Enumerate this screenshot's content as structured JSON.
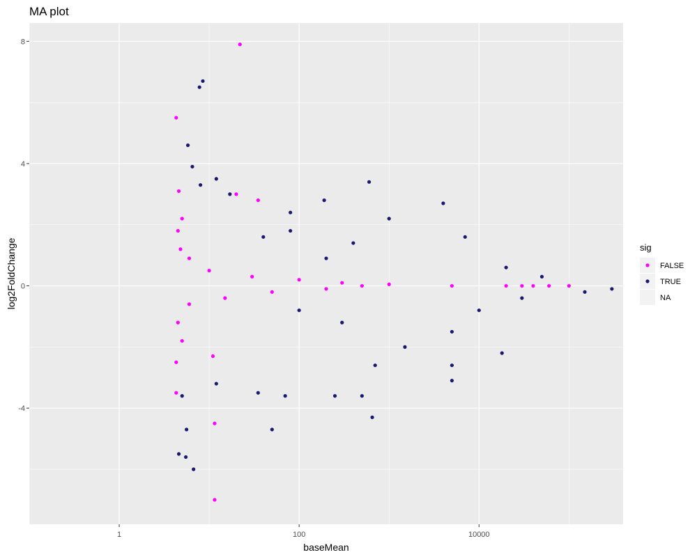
{
  "chart_data": {
    "type": "scatter",
    "title": "MA plot",
    "xlabel": "baseMean",
    "ylabel": "log2FoldChange",
    "x_scale": "log10",
    "xlim": [
      0.1,
      400000
    ],
    "ylim": [
      -7.8,
      8.6
    ],
    "x_ticks": [
      {
        "value": 1,
        "label": "1"
      },
      {
        "value": 100,
        "label": "100"
      },
      {
        "value": 10000,
        "label": "10000"
      }
    ],
    "y_ticks": [
      {
        "value": -4,
        "label": "-4"
      },
      {
        "value": 0,
        "label": "0"
      },
      {
        "value": 4,
        "label": "4"
      },
      {
        "value": 8,
        "label": "8"
      }
    ],
    "grid": true,
    "legend": {
      "title": "sig",
      "position": "right",
      "entries": [
        {
          "label": "FALSE",
          "color": "#ff00ff"
        },
        {
          "label": "TRUE",
          "color": "#191970"
        },
        {
          "label": "NA",
          "color": ""
        }
      ]
    },
    "colors": {
      "panel_bg": "#ebebeb",
      "grid": "#ffffff"
    },
    "series": [
      {
        "name": "FALSE",
        "color": "#ff00ff",
        "points": [
          [
            22,
            7.9
          ],
          [
            4.3,
            5.5
          ],
          [
            4.6,
            3.1
          ],
          [
            20,
            3.0
          ],
          [
            35,
            2.8
          ],
          [
            5,
            2.2
          ],
          [
            4.5,
            1.8
          ],
          [
            4.8,
            1.2
          ],
          [
            6,
            0.9
          ],
          [
            10,
            0.5
          ],
          [
            30,
            0.3
          ],
          [
            100,
            0.2
          ],
          [
            300,
            0.1
          ],
          [
            1000,
            0.05
          ],
          [
            5000,
            0.0
          ],
          [
            20000,
            0.0
          ],
          [
            30000,
            0.0
          ],
          [
            40000,
            0.0
          ],
          [
            60000,
            0.0
          ],
          [
            100000,
            0.0
          ],
          [
            500,
            0.0
          ],
          [
            200,
            -0.1
          ],
          [
            50,
            -0.2
          ],
          [
            15,
            -0.4
          ],
          [
            6,
            -0.6
          ],
          [
            4.5,
            -1.2
          ],
          [
            5,
            -1.8
          ],
          [
            4.3,
            -2.5
          ],
          [
            4.3,
            -3.5
          ],
          [
            11,
            -2.3
          ],
          [
            11.5,
            -4.5
          ],
          [
            11.5,
            -7.0
          ]
        ]
      },
      {
        "name": "TRUE",
        "color": "#191970",
        "points": [
          [
            8.5,
            6.7
          ],
          [
            7.8,
            6.5
          ],
          [
            5.8,
            4.6
          ],
          [
            6.5,
            3.9
          ],
          [
            12,
            3.5
          ],
          [
            8,
            3.3
          ],
          [
            17,
            3.0
          ],
          [
            190,
            2.8
          ],
          [
            600,
            3.4
          ],
          [
            80,
            2.4
          ],
          [
            4000,
            2.7
          ],
          [
            1000,
            2.2
          ],
          [
            7000,
            1.6
          ],
          [
            20000,
            0.6
          ],
          [
            50000,
            0.3
          ],
          [
            300000,
            -0.1
          ],
          [
            150000,
            -0.2
          ],
          [
            30000,
            -0.4
          ],
          [
            10000,
            -0.8
          ],
          [
            5000,
            -1.5
          ],
          [
            1500,
            -2.0
          ],
          [
            700,
            -2.6
          ],
          [
            5000,
            -2.6
          ],
          [
            18000,
            -2.2
          ],
          [
            5000,
            -3.1
          ],
          [
            500,
            -3.6
          ],
          [
            250,
            -3.6
          ],
          [
            70,
            -3.6
          ],
          [
            35,
            -3.5
          ],
          [
            12,
            -3.2
          ],
          [
            5,
            -3.6
          ],
          [
            5.6,
            -4.7
          ],
          [
            50,
            -4.7
          ],
          [
            650,
            -4.3
          ],
          [
            4.6,
            -5.5
          ],
          [
            5.5,
            -5.6
          ],
          [
            6.7,
            -6.0
          ],
          [
            80,
            1.8
          ],
          [
            40,
            1.6
          ],
          [
            400,
            1.4
          ],
          [
            300,
            -1.2
          ],
          [
            200,
            0.9
          ],
          [
            100,
            -0.8
          ]
        ]
      }
    ]
  }
}
